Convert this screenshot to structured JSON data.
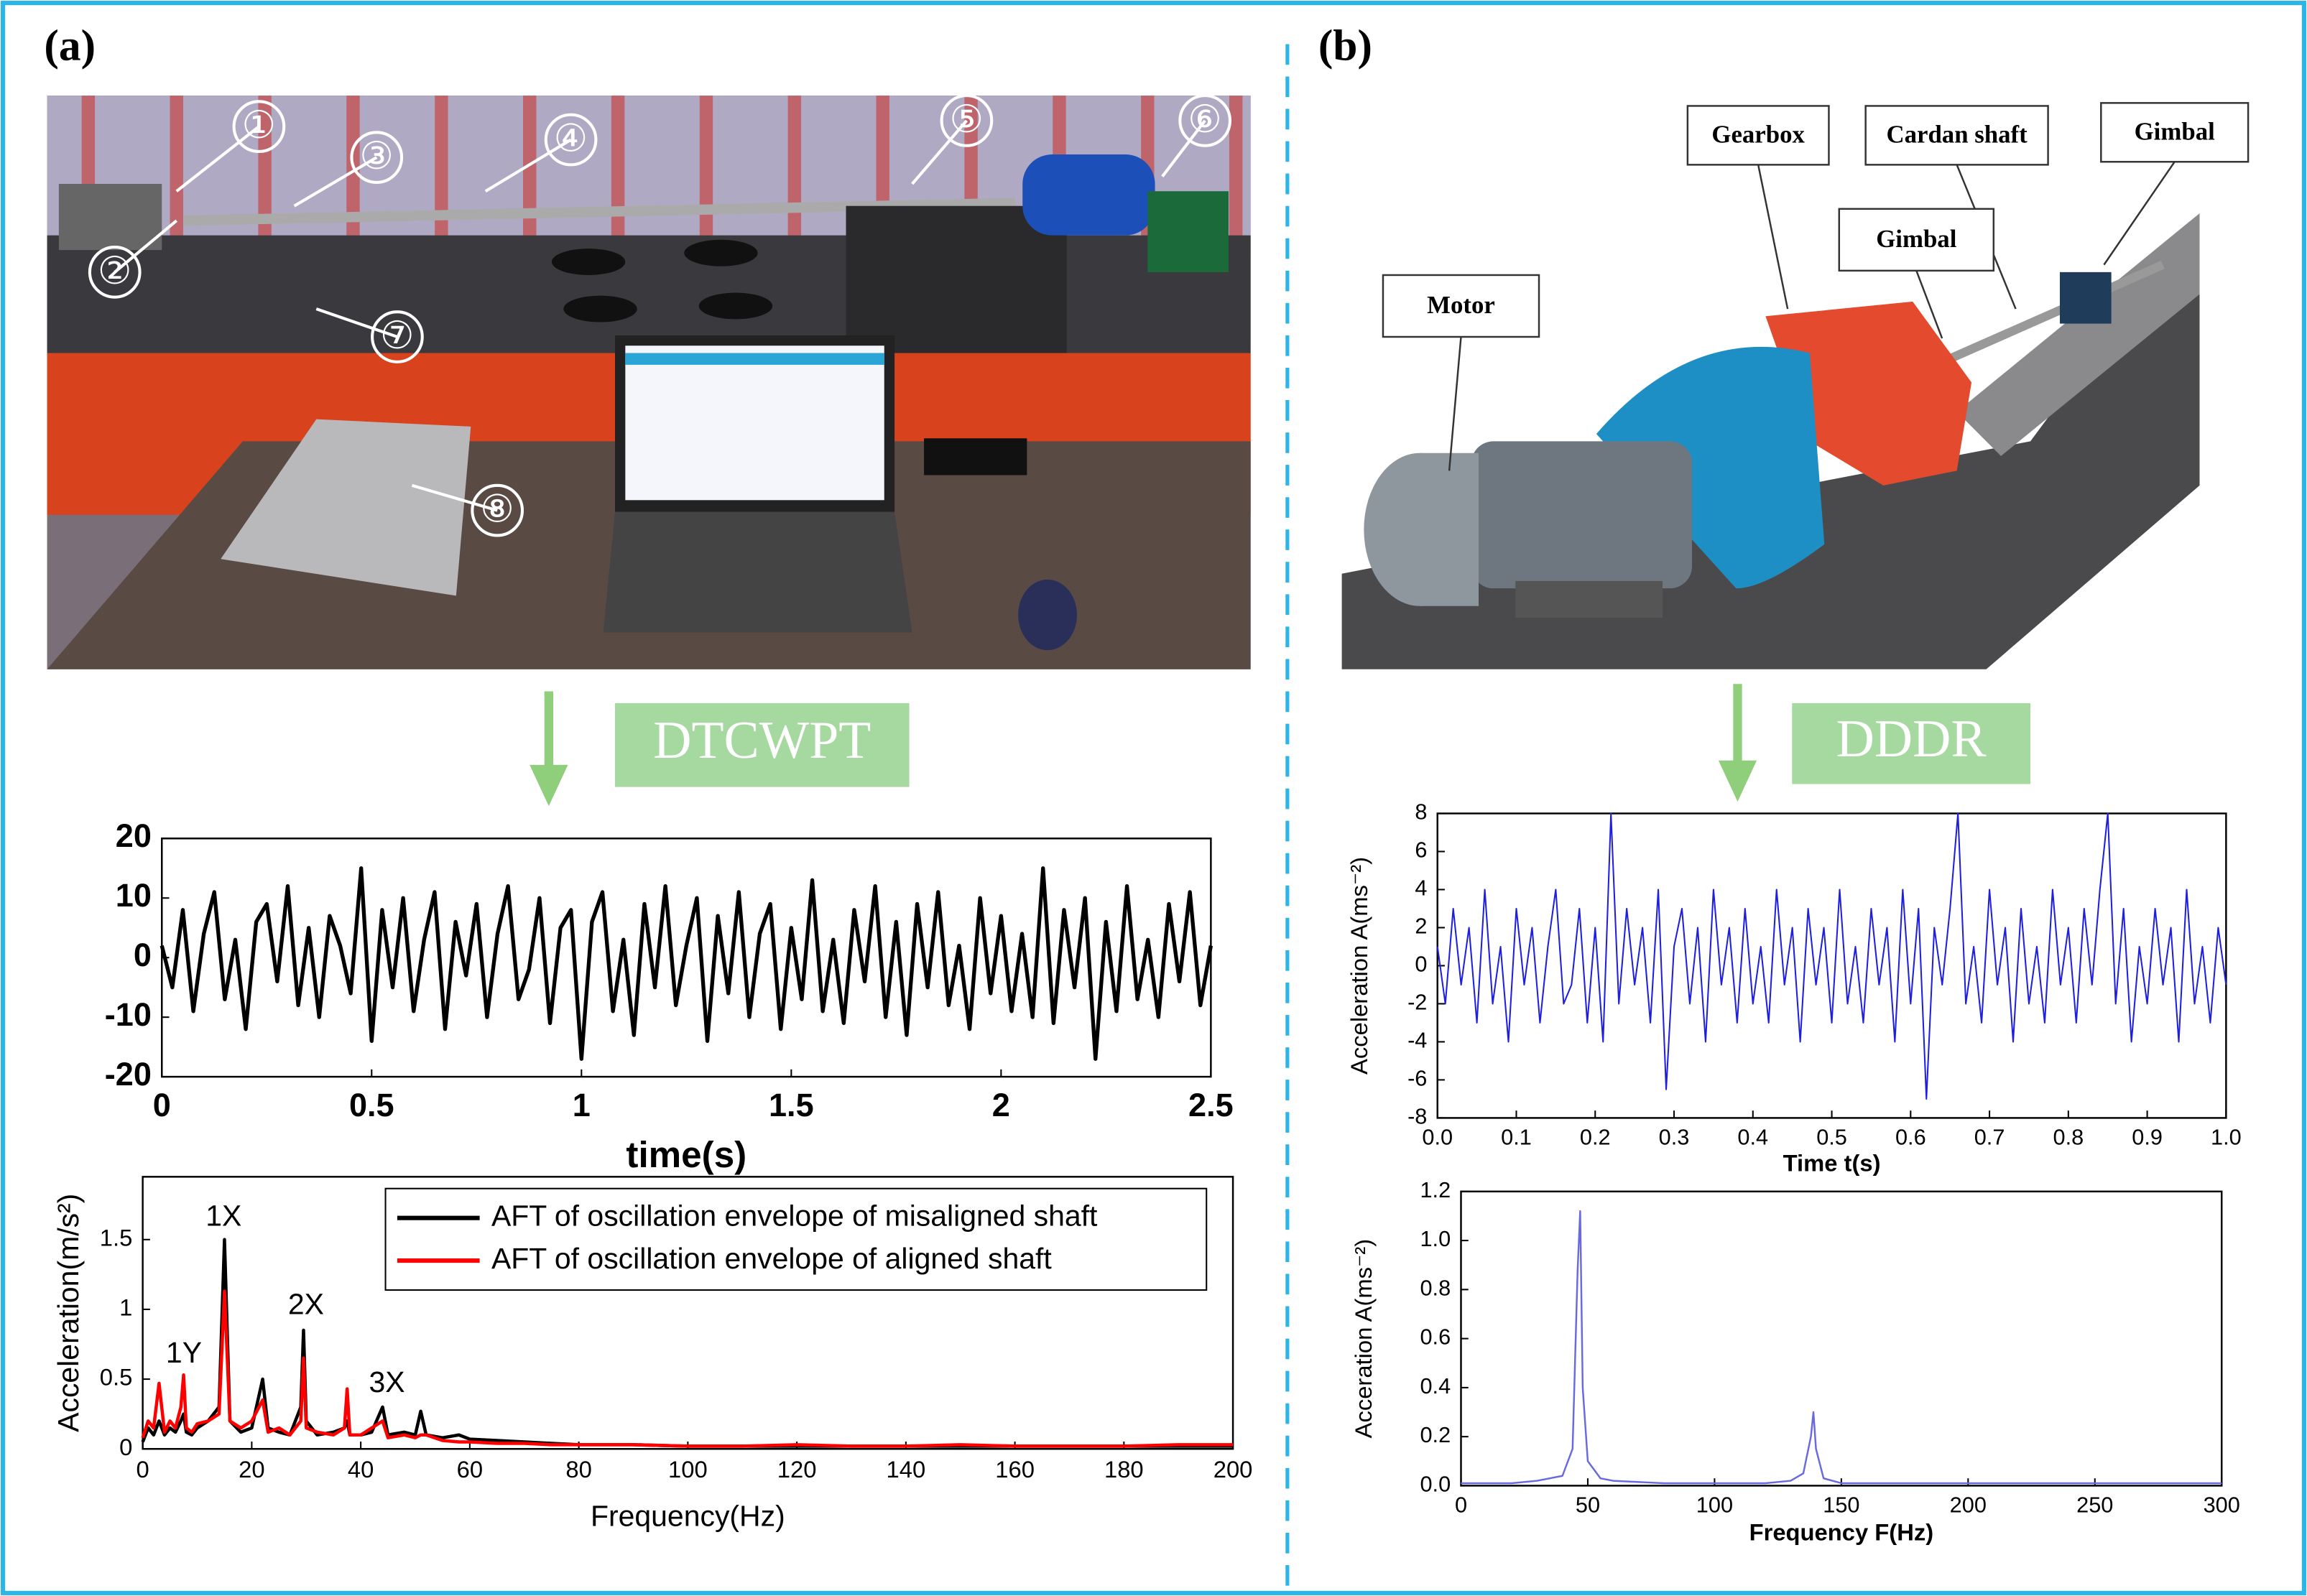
{
  "panels": [
    "(a)",
    "(b)"
  ],
  "methods": [
    "DTCWPT",
    "DDDR"
  ],
  "photo_a_callouts": [
    "①",
    "②",
    "③",
    "④",
    "⑤",
    "⑥",
    "⑦",
    "⑧"
  ],
  "photo_b_labels": [
    "Gearbox",
    "Cardan shaft",
    "Gimbal",
    "Gimbal",
    "Motor"
  ],
  "chart_data": [
    {
      "type": "line",
      "xlabel": "time(s)",
      "color": "#000000",
      "x": [
        0,
        0.025,
        0.05,
        0.075,
        0.1,
        0.125,
        0.15,
        0.175,
        0.2,
        0.225,
        0.25,
        0.275,
        0.3,
        0.325,
        0.35,
        0.375,
        0.4,
        0.425,
        0.45,
        0.475,
        0.5,
        0.525,
        0.55,
        0.575,
        0.6,
        0.625,
        0.65,
        0.675,
        0.7,
        0.725,
        0.75,
        0.775,
        0.8,
        0.825,
        0.85,
        0.875,
        0.9,
        0.925,
        0.95,
        0.975,
        1,
        1.025,
        1.05,
        1.075,
        1.1,
        1.125,
        1.15,
        1.175,
        1.2,
        1.225,
        1.25,
        1.275,
        1.3,
        1.325,
        1.35,
        1.375,
        1.4,
        1.425,
        1.45,
        1.475,
        1.5,
        1.525,
        1.55,
        1.575,
        1.6,
        1.625,
        1.65,
        1.675,
        1.7,
        1.725,
        1.75,
        1.775,
        1.8,
        1.825,
        1.85,
        1.875,
        1.9,
        1.925,
        1.95,
        1.975,
        2,
        2.025,
        2.05,
        2.075,
        2.1,
        2.125,
        2.15,
        2.175,
        2.2,
        2.225,
        2.25,
        2.275,
        2.3,
        2.325,
        2.35,
        2.375,
        2.4,
        2.425,
        2.45,
        2.475,
        2.5
      ],
      "values": [
        2,
        -5,
        8,
        -9,
        4,
        11,
        -7,
        3,
        -12,
        6,
        9,
        -4,
        12,
        -8,
        5,
        -10,
        7,
        2,
        -6,
        15,
        -14,
        8,
        -5,
        10,
        -9,
        3,
        11,
        -12,
        6,
        -3,
        9,
        -10,
        4,
        12,
        -7,
        -2,
        10,
        -11,
        5,
        8,
        -17,
        6,
        11,
        -9,
        3,
        -13,
        9,
        -5,
        12,
        -8,
        2,
        10,
        -14,
        7,
        -6,
        11,
        -10,
        4,
        9,
        -12,
        5,
        -7,
        13,
        -9,
        3,
        -11,
        8,
        -4,
        12,
        -10,
        6,
        -13,
        9,
        -5,
        11,
        -8,
        2,
        -12,
        10,
        -6,
        7,
        -9,
        4,
        -10,
        15,
        -11,
        8,
        -5,
        10,
        -17,
        6,
        -9,
        12,
        -7,
        3,
        -10,
        9,
        -4,
        11,
        -8,
        2
      ],
      "xlim": [
        0,
        2.5
      ],
      "xticks": [
        0,
        0.5,
        1,
        1.5,
        2,
        2.5
      ],
      "ylim": [
        -20,
        20
      ],
      "yticks": [
        -20,
        -10,
        0,
        10,
        20
      ]
    },
    {
      "type": "line",
      "xlabel": "Frequency(Hz)",
      "ylabel": "Acceleration(m/s²)",
      "legend": "upper right",
      "annotations": [
        "1X",
        "1Y",
        "2X",
        "3X"
      ],
      "x": [
        0,
        1,
        2,
        3,
        4,
        5,
        6,
        7,
        7.5,
        8,
        9,
        10,
        12,
        14,
        15,
        16,
        18,
        20,
        22,
        23,
        25,
        27,
        29,
        29.5,
        30,
        32,
        35,
        37,
        37.5,
        38,
        40,
        42,
        44,
        45,
        48,
        50,
        51,
        52,
        55,
        58,
        60,
        65,
        70,
        75,
        80,
        90,
        100,
        110,
        120,
        130,
        140,
        150,
        160,
        170,
        180,
        190,
        200
      ],
      "series": [
        {
          "name": "AFT of oscillation envelope of misaligned shaft",
          "color": "#000000",
          "values": [
            0.05,
            0.15,
            0.1,
            0.2,
            0.1,
            0.15,
            0.12,
            0.2,
            0.25,
            0.12,
            0.1,
            0.15,
            0.2,
            0.3,
            1.5,
            0.2,
            0.12,
            0.15,
            0.5,
            0.15,
            0.12,
            0.1,
            0.3,
            0.85,
            0.2,
            0.1,
            0.12,
            0.15,
            0.2,
            0.1,
            0.1,
            0.12,
            0.3,
            0.1,
            0.12,
            0.1,
            0.27,
            0.1,
            0.08,
            0.1,
            0.07,
            0.06,
            0.05,
            0.04,
            0.03,
            0.03,
            0.02,
            0.02,
            0.02,
            0.02,
            0.02,
            0.02,
            0.02,
            0.02,
            0.02,
            0.02,
            0.02
          ]
        },
        {
          "name": "AFT of oscillation envelope of aligned shaft",
          "color": "#ff0000",
          "values": [
            0.08,
            0.2,
            0.15,
            0.47,
            0.12,
            0.2,
            0.15,
            0.3,
            0.53,
            0.15,
            0.12,
            0.18,
            0.2,
            0.25,
            1.13,
            0.2,
            0.15,
            0.2,
            0.35,
            0.12,
            0.15,
            0.1,
            0.2,
            0.65,
            0.15,
            0.12,
            0.1,
            0.15,
            0.43,
            0.1,
            0.1,
            0.15,
            0.2,
            0.08,
            0.1,
            0.08,
            0.1,
            0.1,
            0.06,
            0.05,
            0.05,
            0.04,
            0.04,
            0.03,
            0.03,
            0.03,
            0.02,
            0.02,
            0.03,
            0.02,
            0.02,
            0.03,
            0.02,
            0.02,
            0.02,
            0.03,
            0.03
          ]
        }
      ],
      "xlim": [
        0,
        200
      ],
      "xticks": [
        0,
        20,
        40,
        60,
        80,
        100,
        120,
        140,
        160,
        180,
        200
      ],
      "ylim": [
        0,
        1.95
      ],
      "yticks": [
        0,
        0.5,
        1,
        1.5
      ]
    },
    {
      "type": "line",
      "xlabel": "Time t(s)",
      "ylabel": "Acceleration A(ms⁻²)",
      "color": "#1f1fe0",
      "x": [
        0,
        0.01,
        0.02,
        0.03,
        0.04,
        0.05,
        0.06,
        0.07,
        0.08,
        0.09,
        0.1,
        0.11,
        0.12,
        0.13,
        0.14,
        0.15,
        0.16,
        0.17,
        0.18,
        0.19,
        0.2,
        0.21,
        0.22,
        0.23,
        0.24,
        0.25,
        0.26,
        0.27,
        0.28,
        0.29,
        0.3,
        0.31,
        0.32,
        0.33,
        0.34,
        0.35,
        0.36,
        0.37,
        0.38,
        0.39,
        0.4,
        0.41,
        0.42,
        0.43,
        0.44,
        0.45,
        0.46,
        0.47,
        0.48,
        0.49,
        0.5,
        0.51,
        0.52,
        0.53,
        0.54,
        0.55,
        0.56,
        0.57,
        0.58,
        0.59,
        0.6,
        0.61,
        0.62,
        0.63,
        0.64,
        0.65,
        0.66,
        0.67,
        0.68,
        0.69,
        0.7,
        0.71,
        0.72,
        0.73,
        0.74,
        0.75,
        0.76,
        0.77,
        0.78,
        0.79,
        0.8,
        0.81,
        0.82,
        0.83,
        0.84,
        0.85,
        0.86,
        0.87,
        0.88,
        0.89,
        0.9,
        0.91,
        0.92,
        0.93,
        0.94,
        0.95,
        0.96,
        0.97,
        0.98,
        0.99,
        1
      ],
      "values": [
        1,
        -2,
        3,
        -1,
        2,
        -3,
        4,
        -2,
        1,
        -4,
        3,
        -1,
        2,
        -3,
        1,
        4,
        -2,
        -1,
        3,
        -3,
        2,
        -4,
        8,
        -2,
        3,
        -1,
        2,
        -3,
        4,
        -6.5,
        1,
        3,
        -2,
        2,
        -4,
        4,
        -1,
        2,
        -3,
        3,
        -2,
        1,
        -3,
        4,
        -1,
        2,
        -4,
        3,
        -1,
        2,
        -3,
        4,
        -2,
        1,
        -3,
        3,
        -1,
        2,
        -4,
        4,
        -2,
        3,
        -7,
        2,
        -1,
        3,
        8,
        -2,
        1,
        -3,
        4,
        -1,
        2,
        -4,
        3,
        -2,
        1,
        -3,
        4,
        -1,
        2,
        -3,
        3,
        -1,
        4,
        8,
        -2,
        3,
        -4,
        1,
        -2,
        3,
        -1,
        2,
        -4,
        4,
        -2,
        1,
        -3,
        2,
        -1
      ],
      "xlim": [
        0,
        1
      ],
      "xticks": [
        {
          "value": 0,
          "label": "0.0"
        },
        0.1,
        0.2,
        0.3,
        0.4,
        0.5,
        0.6,
        0.7,
        0.8,
        0.9,
        {
          "value": 1,
          "label": "1.0"
        }
      ],
      "ylim": [
        -8,
        8
      ],
      "yticks": [
        -8,
        -6,
        -4,
        -2,
        0,
        2,
        4,
        6,
        8
      ]
    },
    {
      "type": "line",
      "xlabel": "Frequency F(Hz)",
      "ylabel": "Acceration A(ms⁻²)",
      "color": "#6a6ae0",
      "x": [
        0,
        10,
        20,
        30,
        40,
        44,
        46,
        47,
        48,
        50,
        55,
        60,
        80,
        100,
        120,
        130,
        135,
        138,
        139,
        140,
        143,
        150,
        180,
        200,
        250,
        300
      ],
      "values": [
        0.01,
        0.01,
        0.01,
        0.02,
        0.04,
        0.15,
        0.88,
        1.12,
        0.4,
        0.1,
        0.03,
        0.02,
        0.01,
        0.01,
        0.01,
        0.02,
        0.05,
        0.2,
        0.3,
        0.15,
        0.03,
        0.01,
        0.01,
        0.01,
        0.01,
        0.01
      ],
      "xlim": [
        0,
        300
      ],
      "xticks": [
        0,
        50,
        100,
        150,
        200,
        250,
        300
      ],
      "ylim": [
        0,
        1.2
      ],
      "yticks": [
        {
          "value": 0,
          "label": "0.0"
        },
        0.2,
        0.4,
        0.6,
        0.8,
        {
          "value": 1,
          "label": "1.0"
        },
        1.2
      ]
    }
  ]
}
